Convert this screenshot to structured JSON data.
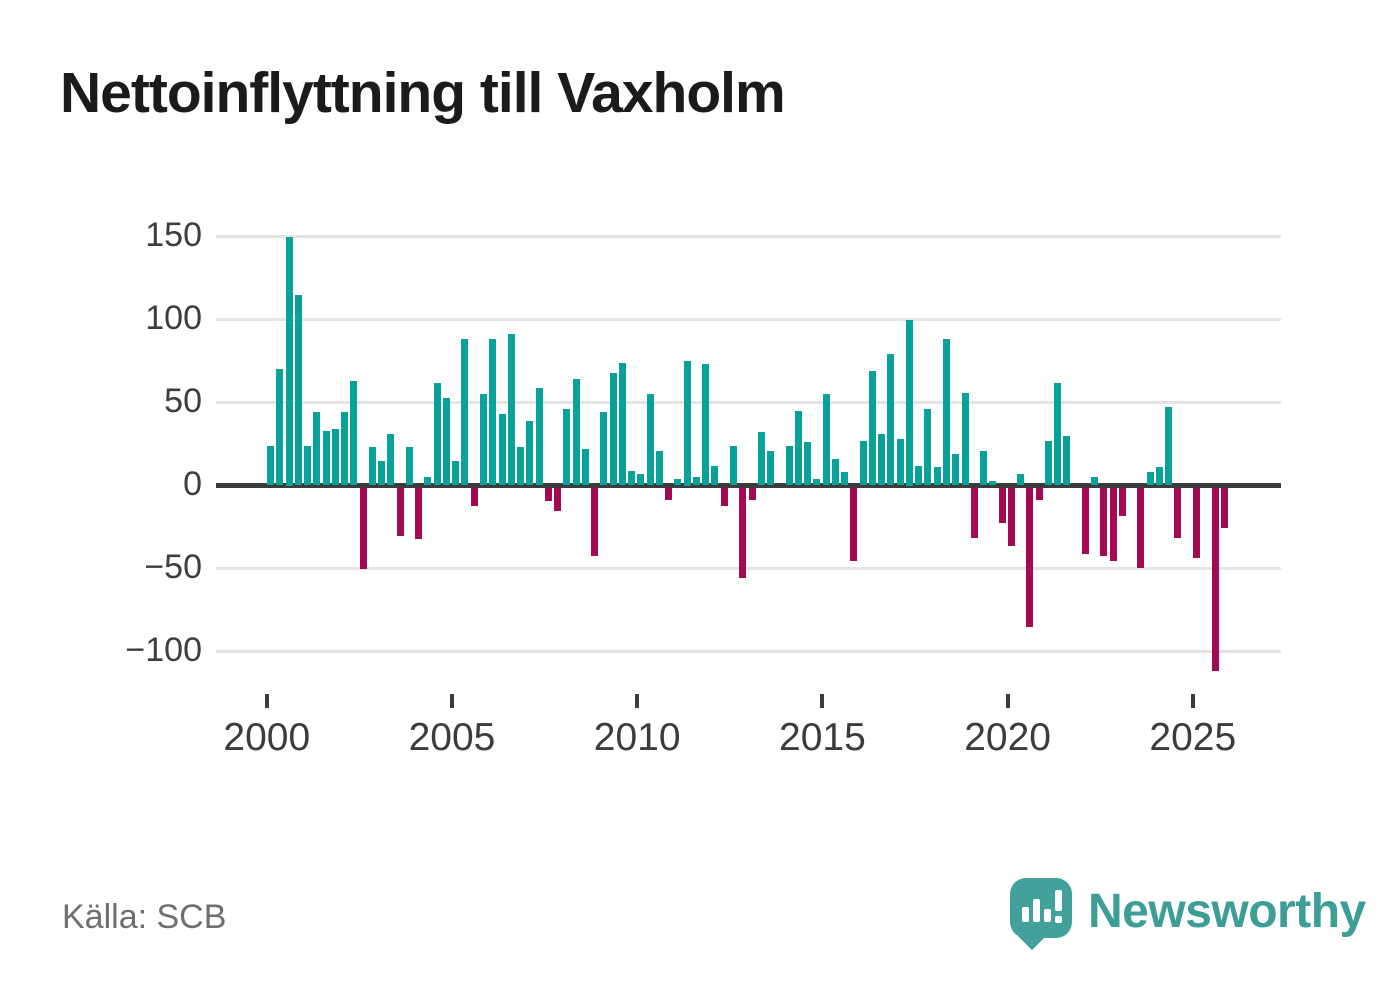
{
  "title": "Nettoinflyttning till Vaxholm",
  "footer": {
    "source": "Källa: SCB",
    "brand": "Newsworthy"
  },
  "chart_data": {
    "type": "bar",
    "title": "Nettoinflyttning till Vaxholm",
    "source": "Källa: SCB",
    "frequency": "quarterly",
    "x_start": "2000-Q1",
    "x_end": "2025-Q4",
    "xticks": [
      2000,
      2005,
      2010,
      2015,
      2020,
      2025
    ],
    "yticks": [
      150,
      100,
      50,
      0,
      -50,
      -100
    ],
    "ytick_labels": [
      "150",
      "100",
      "50",
      "0",
      "−50",
      "−100"
    ],
    "ylim": [
      -125,
      165
    ],
    "grid": true,
    "legend": false,
    "colors": {
      "positive": "#09a29b",
      "negative": "#a40a52",
      "baseline": "#3b3b3b",
      "gridline": "#e4e4e4"
    },
    "series": [
      {
        "name": "Nettoinflyttning",
        "values": [
          24,
          70,
          150,
          115,
          24,
          44,
          33,
          34,
          44,
          63,
          -49,
          23,
          15,
          31,
          -29,
          23,
          -31,
          5,
          62,
          53,
          15,
          88,
          -11,
          55,
          88,
          43,
          91,
          23,
          39,
          59,
          -8,
          -14,
          46,
          64,
          22,
          -41,
          44,
          68,
          74,
          9,
          7,
          55,
          21,
          -7,
          4,
          75,
          5,
          73,
          12,
          -11,
          24,
          -54,
          -7,
          32,
          21,
          0,
          24,
          45,
          26,
          4,
          55,
          16,
          8,
          -44,
          27,
          69,
          31,
          79,
          28,
          100,
          12,
          46,
          11,
          88,
          19,
          56,
          -30,
          21,
          3,
          -21,
          -35,
          7,
          -84,
          -7,
          27,
          62,
          30,
          0,
          -40,
          5,
          -41,
          -44,
          -17,
          0,
          -48,
          8,
          11,
          47,
          -30,
          0,
          -42,
          0,
          -110,
          -24
        ]
      }
    ]
  }
}
